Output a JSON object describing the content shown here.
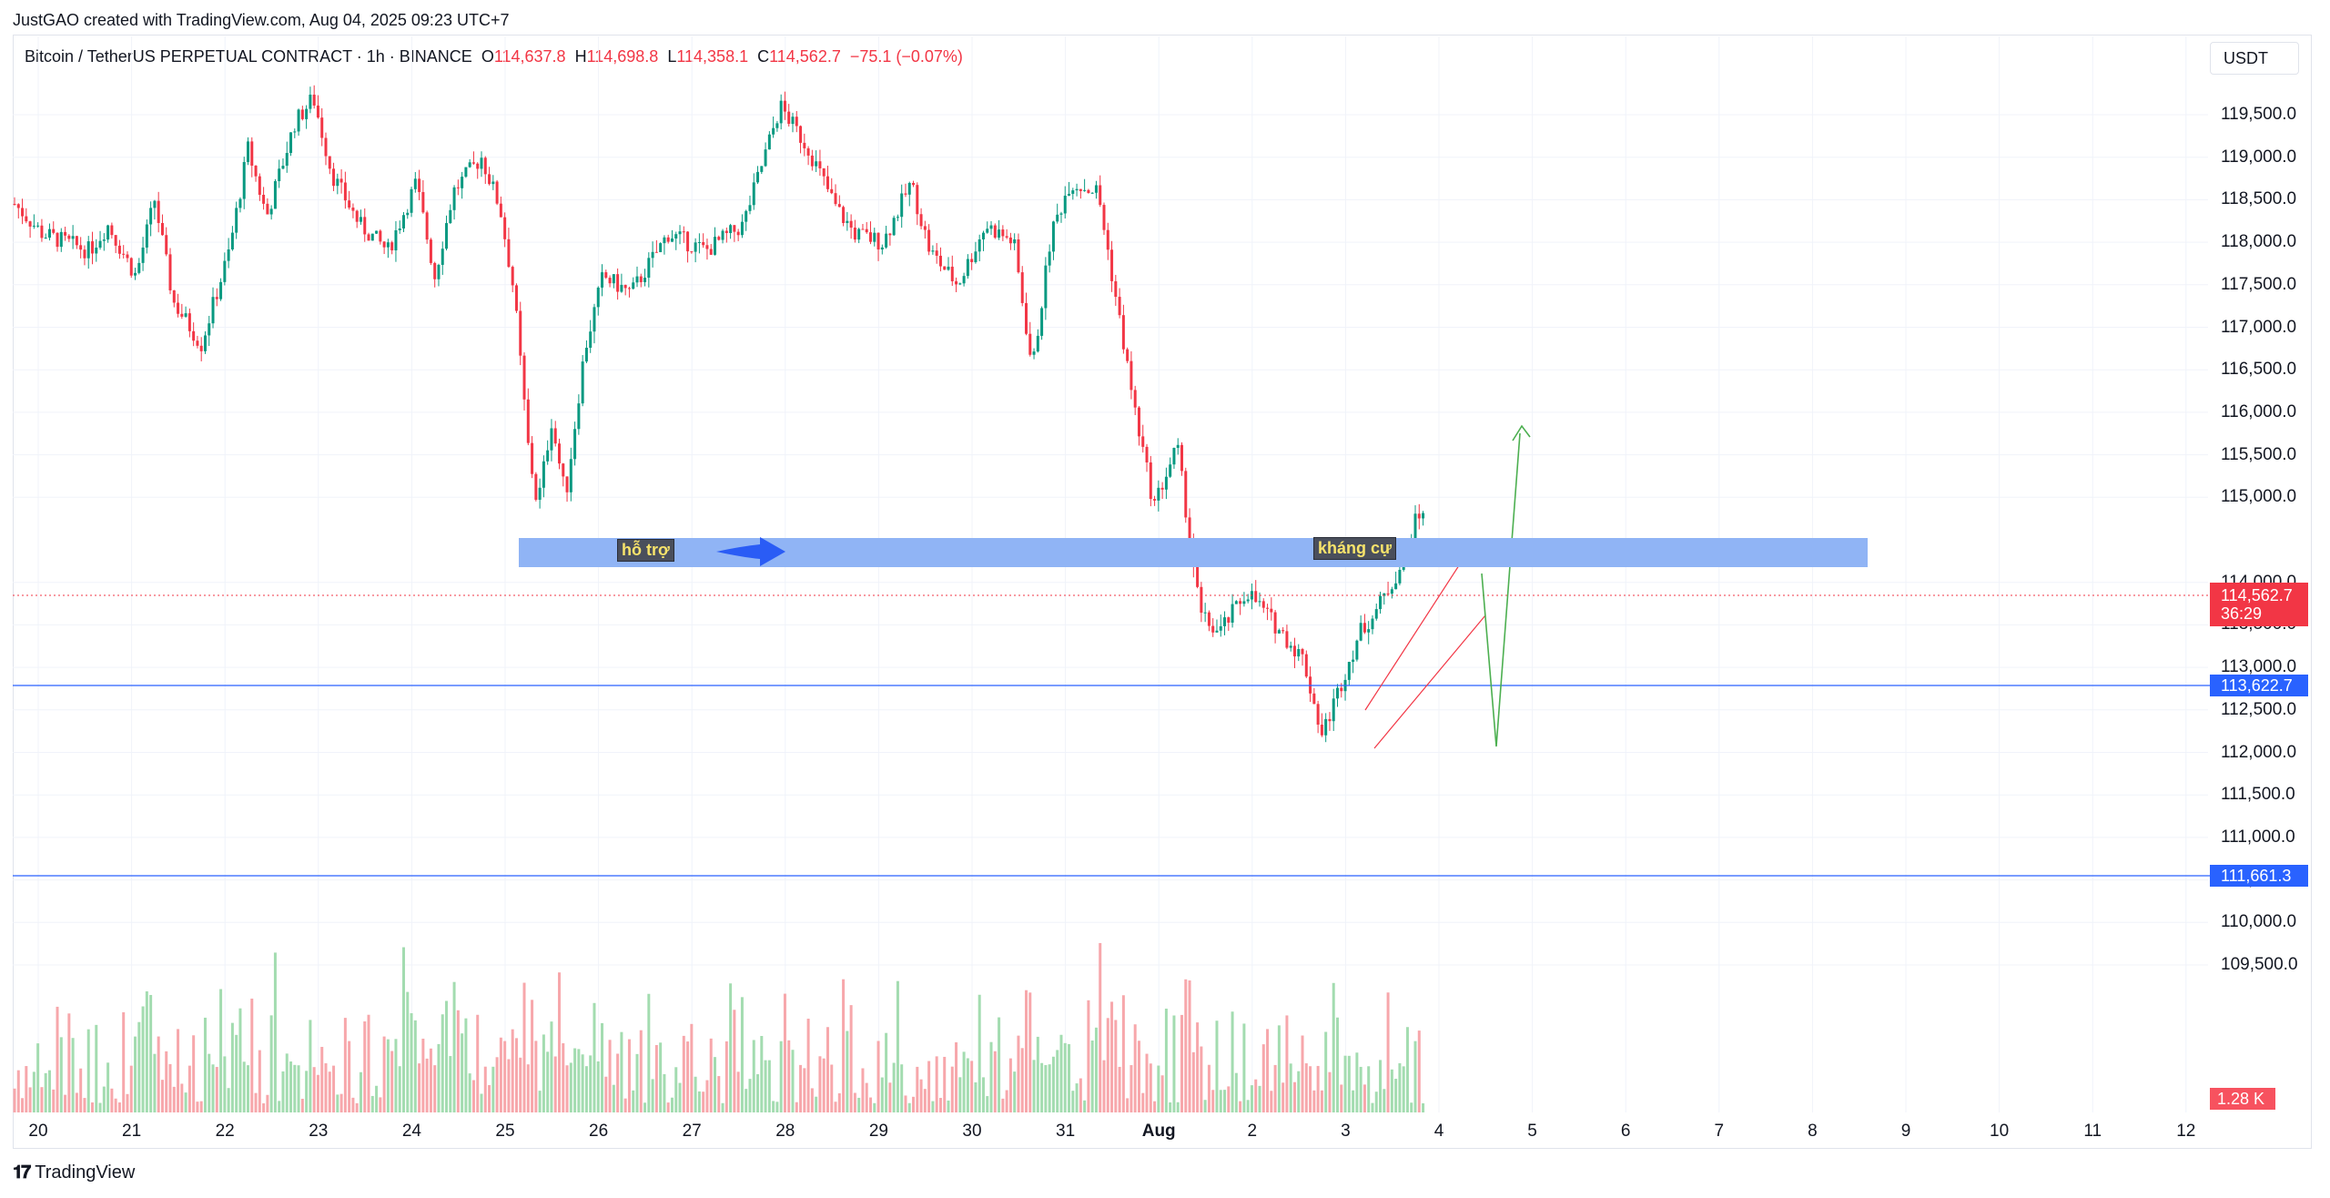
{
  "caption": "JustGAO created with TradingView.com, Aug 04, 2025 09:23 UTC+7",
  "symbol": {
    "name": "Bitcoin / TetherUS PERPETUAL CONTRACT · 1h · BINANCE",
    "o_label": "O",
    "o_value": "114,637.8",
    "h_label": "H",
    "h_value": "114,698.8",
    "l_label": "L",
    "l_value": "114,358.1",
    "c_label": "C",
    "c_value": "114,562.7",
    "change": "−75.1 (−0.07%)"
  },
  "currency": "USDT",
  "price_axis": [
    "119,500.0",
    "119,000.0",
    "118,500.0",
    "118,000.0",
    "117,500.0",
    "117,000.0",
    "116,500.0",
    "116,000.0",
    "115,500.0",
    "115,000.0",
    "114,000.0",
    "113,500.0",
    "113,000.0",
    "112,500.0",
    "112,000.0",
    "111,500.0",
    "111,000.0",
    "110,500.0",
    "110,000.0",
    "109,500.0"
  ],
  "time_axis": [
    "20",
    "21",
    "22",
    "23",
    "24",
    "25",
    "26",
    "27",
    "28",
    "29",
    "30",
    "31",
    "Aug",
    "2",
    "3",
    "4",
    "5",
    "6",
    "7",
    "8",
    "9",
    "10",
    "11",
    "12"
  ],
  "last_price": {
    "value": "114,562.7",
    "countdown": "36:29"
  },
  "lines": [
    {
      "label": "113,622.7",
      "color": "#2962ff"
    },
    {
      "label": "111,661.3",
      "color": "#2962ff"
    }
  ],
  "volume_label": "1.28 K",
  "annotations": {
    "support": "hỗ trợ",
    "resistance": "kháng cự"
  },
  "zone_color": "#90b4f5",
  "up_color": "#089981",
  "down_color": "#f23645",
  "footer": {
    "brand": "TradingView",
    "icon": "tradingview-logo-icon"
  }
}
